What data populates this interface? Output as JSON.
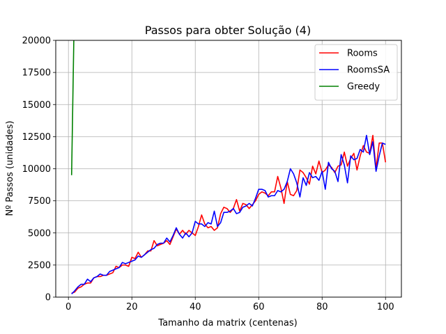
{
  "chart_data": {
    "type": "line",
    "title": "Passos para obter Solução (4)",
    "xlabel": "Tamanho da matrix (centenas)",
    "ylabel": "Nº Passos (unidades)",
    "xlim": [
      -4,
      105
    ],
    "ylim": [
      0,
      20000
    ],
    "xticks": [
      0,
      20,
      40,
      60,
      80,
      100
    ],
    "yticks": [
      0,
      2500,
      5000,
      7500,
      10000,
      12500,
      15000,
      17500,
      20000
    ],
    "xtick_labels": [
      "0",
      "20",
      "40",
      "60",
      "80",
      "100"
    ],
    "ytick_labels": [
      "0",
      "2500",
      "5000",
      "7500",
      "10000",
      "12500",
      "15000",
      "17500",
      "20000"
    ],
    "grid": true,
    "legend_position": "top-right",
    "series": [
      {
        "name": "Rooms",
        "color": "#ff0000",
        "x": [
          1,
          2,
          3,
          4,
          5,
          6,
          7,
          8,
          9,
          10,
          11,
          12,
          13,
          14,
          15,
          16,
          17,
          18,
          19,
          20,
          21,
          22,
          23,
          24,
          25,
          26,
          27,
          28,
          29,
          30,
          31,
          32,
          33,
          34,
          35,
          36,
          37,
          38,
          39,
          40,
          41,
          42,
          43,
          44,
          45,
          46,
          47,
          48,
          49,
          50,
          51,
          52,
          53,
          54,
          55,
          56,
          57,
          58,
          59,
          60,
          61,
          62,
          63,
          64,
          65,
          66,
          67,
          68,
          69,
          70,
          71,
          72,
          73,
          74,
          75,
          76,
          77,
          78,
          79,
          80,
          81,
          82,
          83,
          84,
          85,
          86,
          87,
          88,
          89,
          90,
          91,
          92,
          93,
          94,
          95,
          96,
          97,
          98,
          99,
          100
        ],
        "y": [
          300,
          400,
          700,
          800,
          1000,
          1100,
          1100,
          1500,
          1600,
          1600,
          1700,
          1700,
          1800,
          1900,
          2400,
          2300,
          2500,
          2500,
          2400,
          3100,
          3000,
          3500,
          3100,
          3300,
          3600,
          3600,
          4400,
          4000,
          4100,
          4200,
          4400,
          4100,
          4700,
          5300,
          4900,
          5200,
          4900,
          5200,
          5000,
          4800,
          5500,
          6400,
          5700,
          5400,
          5500,
          5200,
          5400,
          6500,
          7000,
          6900,
          6600,
          6900,
          7600,
          6700,
          7300,
          7200,
          6900,
          7200,
          7500,
          8000,
          8200,
          8100,
          7900,
          8200,
          8200,
          9400,
          8500,
          7300,
          9000,
          8000,
          7900,
          8300,
          9900,
          9700,
          9300,
          8800,
          10200,
          9600,
          10600,
          9700,
          9900,
          10300,
          10100,
          9700,
          10200,
          10300,
          11300,
          10200,
          10800,
          11200,
          9900,
          11000,
          11800,
          11300,
          11200,
          12600,
          10000,
          12000,
          12000,
          10500
        ]
      },
      {
        "name": "RoomsSA",
        "color": "#0000ff",
        "x": [
          1,
          2,
          3,
          4,
          5,
          6,
          7,
          8,
          9,
          10,
          11,
          12,
          13,
          14,
          15,
          16,
          17,
          18,
          19,
          20,
          21,
          22,
          23,
          24,
          25,
          26,
          27,
          28,
          29,
          30,
          31,
          32,
          33,
          34,
          35,
          36,
          37,
          38,
          39,
          40,
          41,
          42,
          43,
          44,
          45,
          46,
          47,
          48,
          49,
          50,
          51,
          52,
          53,
          54,
          55,
          56,
          57,
          58,
          59,
          60,
          61,
          62,
          63,
          64,
          65,
          66,
          67,
          68,
          69,
          70,
          71,
          72,
          73,
          74,
          75,
          76,
          77,
          78,
          79,
          80,
          81,
          82,
          83,
          84,
          85,
          86,
          87,
          88,
          89,
          90,
          91,
          92,
          93,
          94,
          95,
          96,
          97,
          98,
          99,
          100
        ],
        "y": [
          250,
          500,
          800,
          1000,
          1000,
          1400,
          1200,
          1500,
          1600,
          1800,
          1700,
          1700,
          2000,
          2100,
          2200,
          2300,
          2700,
          2600,
          2700,
          2800,
          2900,
          3200,
          3100,
          3300,
          3500,
          3700,
          3800,
          4100,
          4200,
          4200,
          4600,
          4300,
          4800,
          5400,
          4900,
          4600,
          5000,
          4700,
          5000,
          5900,
          5700,
          5700,
          5500,
          5800,
          5700,
          6700,
          5500,
          5800,
          6600,
          6600,
          6700,
          6900,
          6500,
          6600,
          7000,
          7100,
          7300,
          7100,
          7700,
          8400,
          8400,
          8300,
          7800,
          7900,
          7900,
          8300,
          8200,
          8400,
          9000,
          10000,
          9600,
          8900,
          7800,
          9300,
          8700,
          9700,
          9300,
          9400,
          9100,
          9800,
          8400,
          10500,
          10000,
          9800,
          9000,
          11100,
          10300,
          8900,
          11000,
          10700,
          10800,
          11500,
          11300,
          12600,
          11100,
          12100,
          9800,
          11000,
          12000,
          11900
        ]
      },
      {
        "name": "Greedy",
        "color": "#008000",
        "x": [
          1,
          1.35,
          1.7
        ],
        "y": [
          9500,
          14800,
          20100
        ]
      }
    ]
  }
}
